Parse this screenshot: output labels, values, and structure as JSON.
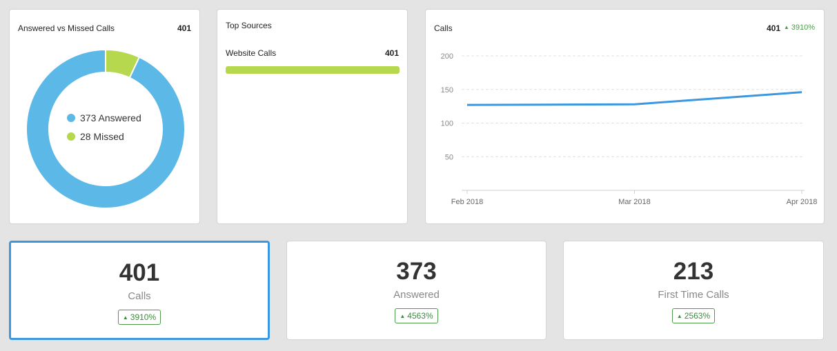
{
  "colors": {
    "answered": "#5cb8e6",
    "missed": "#b5d84f",
    "line": "#3a97e0",
    "bar": "#b5d84f",
    "positive": "#4a9a4a",
    "selected_border": "#3a97e0"
  },
  "donut_card": {
    "title": "Answered vs Missed Calls",
    "total": "401",
    "legend": [
      {
        "label": "373 Answered",
        "value": 373,
        "color_key": "answered"
      },
      {
        "label": "28 Missed",
        "value": 28,
        "color_key": "missed"
      }
    ]
  },
  "sources_card": {
    "title": "Top Sources",
    "items": [
      {
        "label": "Website Calls",
        "value": "401",
        "fraction": 1.0
      }
    ]
  },
  "line_card": {
    "title": "Calls",
    "total": "401",
    "change": "3910%",
    "arrow_icon": "triangle-up-icon"
  },
  "chart_data": [
    {
      "type": "pie",
      "labels": [
        "Answered",
        "Missed"
      ],
      "values": [
        373,
        28
      ],
      "title": "Answered vs Missed Calls"
    },
    {
      "type": "line",
      "title": "Calls",
      "x": [
        "Feb 2018",
        "Mar 2018",
        "Apr 2018"
      ],
      "series": [
        {
          "values": [
            127,
            128,
            146
          ]
        }
      ],
      "yticks": [
        "200",
        "150",
        "100",
        "50"
      ],
      "ylim": [
        0,
        200
      ],
      "grid": true,
      "xlabel": "",
      "ylabel": ""
    }
  ],
  "stats": [
    {
      "value": "401",
      "label": "Calls",
      "change": "3910%",
      "selected": true
    },
    {
      "value": "373",
      "label": "Answered",
      "change": "4563%",
      "selected": false
    },
    {
      "value": "213",
      "label": "First Time Calls",
      "change": "2563%",
      "selected": false
    }
  ]
}
